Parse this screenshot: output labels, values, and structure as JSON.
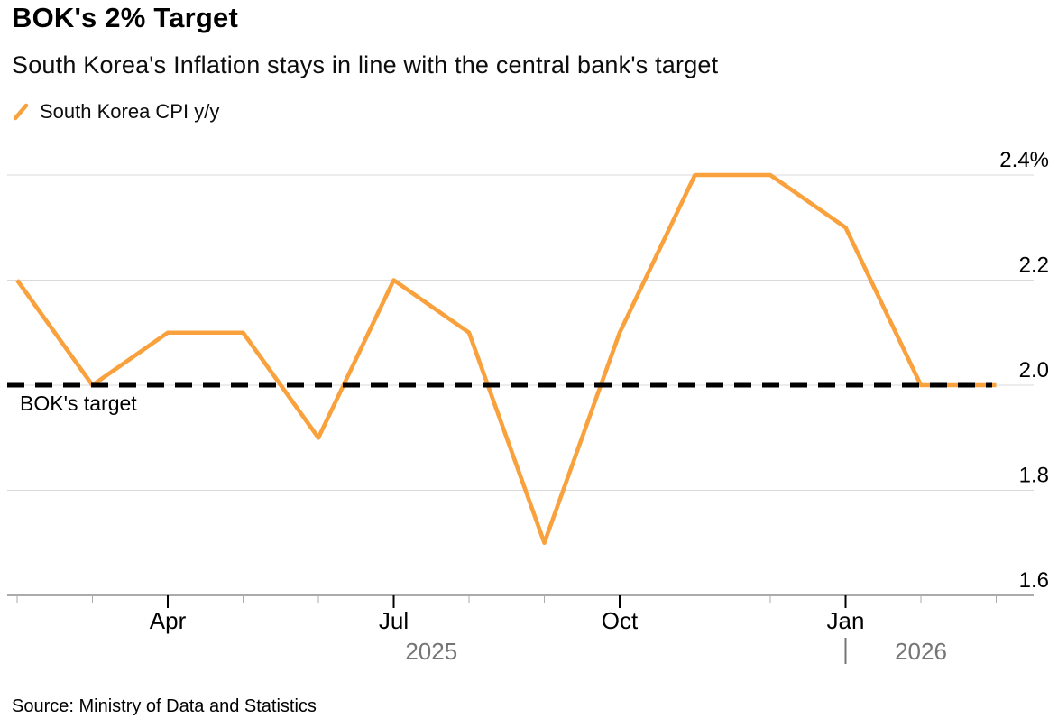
{
  "header": {
    "title": "BOK's 2% Target",
    "subtitle": "South Korea's Inflation stays in line with the central bank's target"
  },
  "legend": {
    "label": "South Korea CPI y/y",
    "marker_color": "#F9A13C"
  },
  "chart_data": {
    "type": "line",
    "title": "BOK's 2% Target",
    "subtitle": "South Korea's Inflation stays in line with the central bank's target",
    "x": [
      "Feb 2025",
      "Mar 2025",
      "Apr 2025",
      "May 2025",
      "Jun 2025",
      "Jul 2025",
      "Aug 2025",
      "Sep 2025",
      "Oct 2025",
      "Nov 2025",
      "Dec 2025",
      "Jan 2026",
      "Feb 2026",
      "Mar 2026"
    ],
    "series": [
      {
        "name": "South Korea CPI y/y",
        "color": "#F9A13C",
        "values": [
          2.2,
          2.0,
          2.1,
          2.1,
          1.9,
          2.2,
          2.1,
          1.7,
          2.1,
          2.4,
          2.4,
          2.3,
          2.0,
          2.0
        ]
      }
    ],
    "ylim": [
      1.6,
      2.4
    ],
    "y_ticks": [
      {
        "value": 2.4,
        "label": "2.4%"
      },
      {
        "value": 2.2,
        "label": "2.2"
      },
      {
        "value": 2.0,
        "label": "2.0"
      },
      {
        "value": 1.8,
        "label": "1.8"
      },
      {
        "value": 1.6,
        "label": "1.6"
      }
    ],
    "x_ticks": [
      {
        "index": 2,
        "label": "Apr"
      },
      {
        "index": 5,
        "label": "Jul"
      },
      {
        "index": 8,
        "label": "Oct"
      },
      {
        "index": 11,
        "label": "Jan"
      }
    ],
    "year_labels": [
      {
        "label": "2025",
        "index": 5.5
      },
      {
        "label": "2026",
        "index": 12,
        "divider_index": 11
      }
    ],
    "target_line": {
      "value": 2.0,
      "label": "BOK's target",
      "style": "dashed",
      "color": "#000000"
    },
    "grid": "horizontal",
    "legend_position": "top-left"
  },
  "footer": {
    "source": "Source: Ministry of Data and Statistics"
  },
  "colors": {
    "line": "#F9A13C",
    "target": "#000000",
    "gridline": "#D9D9D9",
    "axis": "#ABABAB",
    "tick_labeled": "#000000",
    "year_text": "#757575",
    "background": "#FFFFFF",
    "text": "#000000"
  }
}
